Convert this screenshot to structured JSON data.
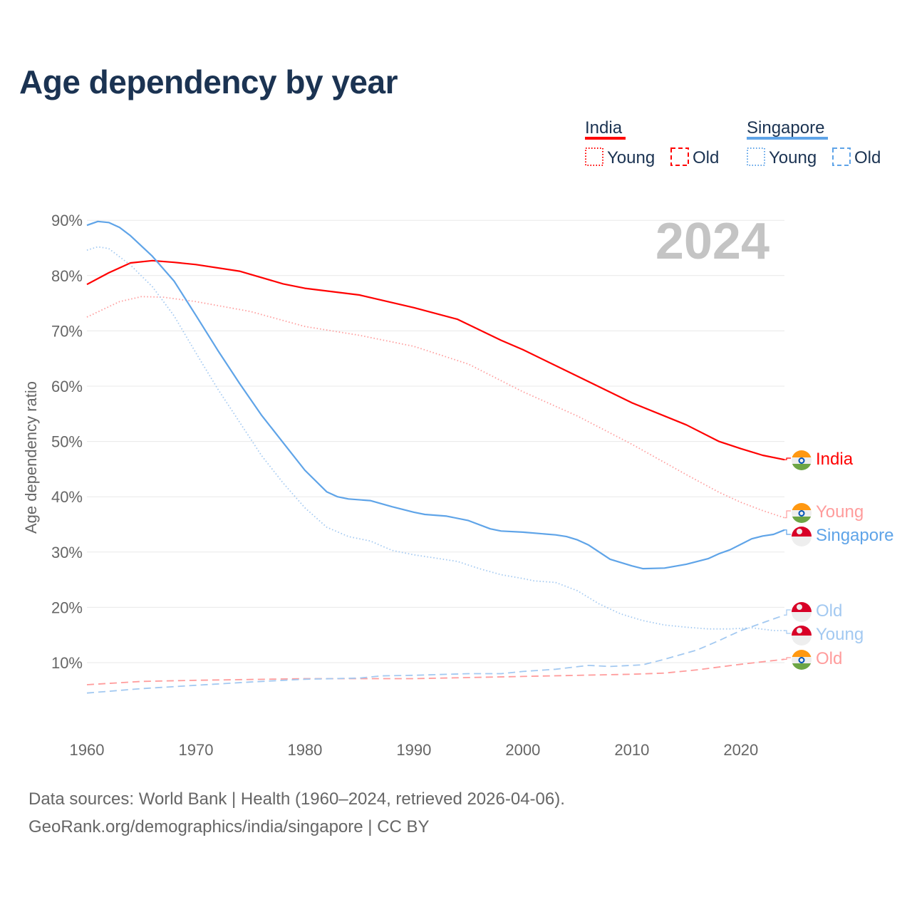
{
  "title": "Age dependency by year",
  "legend": {
    "groups": [
      {
        "name": "India",
        "color": "#ff0000",
        "items": [
          "Young",
          "Old"
        ]
      },
      {
        "name": "Singapore",
        "color": "#5fa4e8",
        "items": [
          "Young",
          "Old"
        ]
      }
    ]
  },
  "year_overlay": "2024",
  "sources": [
    "Data sources: World Bank | Health (1960–2024, retrieved 2026-04-06).",
    "GeoRank.org/demographics/india/singapore | CC BY"
  ],
  "chart_data": {
    "type": "line",
    "title": "Age dependency by year",
    "xlabel": "",
    "ylabel": "Age dependency ratio",
    "xlim": [
      1960,
      2024
    ],
    "ylim": [
      0,
      90
    ],
    "xticks": [
      "1960",
      "1970",
      "1980",
      "1990",
      "2000",
      "2010",
      "2020"
    ],
    "yticks": [
      "10%",
      "20%",
      "30%",
      "40%",
      "50%",
      "60%",
      "70%",
      "80%",
      "90%"
    ],
    "grid": true,
    "legend_position": "top-right",
    "series": [
      {
        "name": "India",
        "label": "India",
        "country": "India",
        "kind": "total",
        "color": "#ff0000",
        "dash": "solid",
        "points": [
          [
            1960,
            78.4
          ],
          [
            1962,
            80.5
          ],
          [
            1964,
            82.3
          ],
          [
            1966,
            82.7
          ],
          [
            1968,
            82.4
          ],
          [
            1970,
            82.0
          ],
          [
            1974,
            80.8
          ],
          [
            1978,
            78.5
          ],
          [
            1980,
            77.7
          ],
          [
            1985,
            76.5
          ],
          [
            1990,
            74.2
          ],
          [
            1994,
            72.1
          ],
          [
            1998,
            68.3
          ],
          [
            2000,
            66.6
          ],
          [
            2005,
            61.8
          ],
          [
            2010,
            57.0
          ],
          [
            2015,
            53.0
          ],
          [
            2018,
            50.0
          ],
          [
            2020,
            48.7
          ],
          [
            2022,
            47.5
          ],
          [
            2024,
            46.7
          ]
        ]
      },
      {
        "name": "India Young",
        "label": "Young",
        "country": "India",
        "kind": "young",
        "color": "#ff9c9c",
        "dash": "dotted",
        "points": [
          [
            1960,
            72.5
          ],
          [
            1963,
            75.3
          ],
          [
            1965,
            76.2
          ],
          [
            1967,
            76.1
          ],
          [
            1970,
            75.3
          ],
          [
            1975,
            73.5
          ],
          [
            1980,
            70.8
          ],
          [
            1985,
            69.2
          ],
          [
            1990,
            67.2
          ],
          [
            1995,
            64.0
          ],
          [
            2000,
            59.0
          ],
          [
            2005,
            54.6
          ],
          [
            2010,
            49.5
          ],
          [
            2015,
            44.0
          ],
          [
            2018,
            40.8
          ],
          [
            2020,
            39.0
          ],
          [
            2022,
            37.5
          ],
          [
            2024,
            36.2
          ]
        ]
      },
      {
        "name": "India Old",
        "label": "Old",
        "country": "India",
        "kind": "old",
        "color": "#ff9c9c",
        "dash": "dashed",
        "points": [
          [
            1960,
            6.0
          ],
          [
            1965,
            6.6
          ],
          [
            1970,
            6.8
          ],
          [
            1980,
            7.1
          ],
          [
            1990,
            7.1
          ],
          [
            2000,
            7.5
          ],
          [
            2010,
            7.9
          ],
          [
            2013,
            8.1
          ],
          [
            2016,
            8.7
          ],
          [
            2020,
            9.7
          ],
          [
            2024,
            10.6
          ]
        ]
      },
      {
        "name": "Singapore",
        "label": "Singapore",
        "country": "Singapore",
        "kind": "total",
        "color": "#5fa4e8",
        "dash": "solid",
        "points": [
          [
            1960,
            89.1
          ],
          [
            1961,
            89.8
          ],
          [
            1962,
            89.6
          ],
          [
            1963,
            88.7
          ],
          [
            1964,
            87.2
          ],
          [
            1966,
            83.5
          ],
          [
            1968,
            79.0
          ],
          [
            1970,
            72.8
          ],
          [
            1972,
            66.5
          ],
          [
            1974,
            60.5
          ],
          [
            1976,
            54.8
          ],
          [
            1978,
            49.8
          ],
          [
            1980,
            44.8
          ],
          [
            1982,
            40.9
          ],
          [
            1983,
            40.0
          ],
          [
            1984,
            39.6
          ],
          [
            1986,
            39.3
          ],
          [
            1988,
            38.2
          ],
          [
            1990,
            37.2
          ],
          [
            1991,
            36.8
          ],
          [
            1993,
            36.5
          ],
          [
            1995,
            35.7
          ],
          [
            1997,
            34.2
          ],
          [
            1998,
            33.8
          ],
          [
            2000,
            33.6
          ],
          [
            2003,
            33.1
          ],
          [
            2004,
            32.8
          ],
          [
            2005,
            32.2
          ],
          [
            2006,
            31.3
          ],
          [
            2008,
            28.7
          ],
          [
            2010,
            27.5
          ],
          [
            2011,
            27.0
          ],
          [
            2013,
            27.1
          ],
          [
            2015,
            27.8
          ],
          [
            2017,
            28.8
          ],
          [
            2018,
            29.7
          ],
          [
            2019,
            30.4
          ],
          [
            2021,
            32.4
          ],
          [
            2022,
            32.9
          ],
          [
            2023,
            33.2
          ],
          [
            2024,
            34.0
          ]
        ]
      },
      {
        "name": "Singapore Young",
        "label": "Young",
        "country": "Singapore",
        "kind": "young",
        "color": "#a3c9f1",
        "dash": "dotted",
        "points": [
          [
            1960,
            84.6
          ],
          [
            1961,
            85.2
          ],
          [
            1962,
            84.9
          ],
          [
            1964,
            81.9
          ],
          [
            1966,
            78.0
          ],
          [
            1968,
            72.7
          ],
          [
            1970,
            66.0
          ],
          [
            1972,
            59.5
          ],
          [
            1974,
            53.5
          ],
          [
            1976,
            47.5
          ],
          [
            1978,
            42.5
          ],
          [
            1980,
            38.0
          ],
          [
            1982,
            34.5
          ],
          [
            1984,
            32.8
          ],
          [
            1986,
            32.0
          ],
          [
            1988,
            30.3
          ],
          [
            1990,
            29.5
          ],
          [
            1992,
            28.9
          ],
          [
            1994,
            28.3
          ],
          [
            1996,
            27.0
          ],
          [
            1998,
            25.9
          ],
          [
            2000,
            25.2
          ],
          [
            2001,
            24.8
          ],
          [
            2003,
            24.5
          ],
          [
            2005,
            23.0
          ],
          [
            2007,
            20.6
          ],
          [
            2009,
            18.8
          ],
          [
            2011,
            17.6
          ],
          [
            2013,
            16.8
          ],
          [
            2015,
            16.4
          ],
          [
            2017,
            16.1
          ],
          [
            2019,
            16.1
          ],
          [
            2021,
            16.3
          ],
          [
            2023,
            15.8
          ],
          [
            2024,
            15.8
          ]
        ]
      },
      {
        "name": "Singapore Old",
        "label": "Old",
        "country": "Singapore",
        "kind": "old",
        "color": "#a3c9f1",
        "dash": "dashed",
        "points": [
          [
            1960,
            4.5
          ],
          [
            1965,
            5.3
          ],
          [
            1970,
            5.9
          ],
          [
            1975,
            6.5
          ],
          [
            1980,
            7.0
          ],
          [
            1985,
            7.2
          ],
          [
            1987,
            7.6
          ],
          [
            1990,
            7.7
          ],
          [
            1995,
            8.0
          ],
          [
            1998,
            8.0
          ],
          [
            2000,
            8.4
          ],
          [
            2003,
            8.8
          ],
          [
            2006,
            9.5
          ],
          [
            2008,
            9.3
          ],
          [
            2011,
            9.6
          ],
          [
            2013,
            10.6
          ],
          [
            2016,
            12.3
          ],
          [
            2018,
            14.0
          ],
          [
            2020,
            15.8
          ],
          [
            2022,
            17.2
          ],
          [
            2024,
            18.6
          ]
        ]
      }
    ]
  }
}
